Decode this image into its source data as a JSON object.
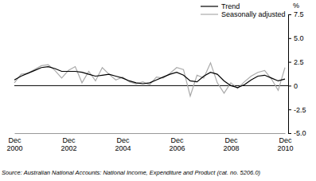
{
  "chart_data": {
    "type": "line",
    "ylabel": "%",
    "source": "Source: Australian National Accounts: National Income, Expenditure and Product (cat. no. 5206.0)",
    "categories": [
      "Dec 2000",
      null,
      null,
      null,
      null,
      null,
      null,
      null,
      "Dec 2002",
      null,
      null,
      null,
      null,
      null,
      null,
      null,
      "Dec 2004",
      null,
      null,
      null,
      null,
      null,
      null,
      null,
      "Dec 2006",
      null,
      null,
      null,
      null,
      null,
      null,
      null,
      "Dec 2008",
      null,
      null,
      null,
      null,
      null,
      null,
      null,
      "Dec 2010"
    ],
    "series": [
      {
        "name": "Trend",
        "color": "#000000",
        "values": [
          0.6,
          1.0,
          1.3,
          1.6,
          1.9,
          2.0,
          1.8,
          1.5,
          1.5,
          1.5,
          1.4,
          1.2,
          1.0,
          1.1,
          1.2,
          1.0,
          0.8,
          0.5,
          0.3,
          0.2,
          0.3,
          0.6,
          0.9,
          1.2,
          1.4,
          1.1,
          0.5,
          0.4,
          1.0,
          1.4,
          1.2,
          0.5,
          0.0,
          -0.2,
          0.1,
          0.6,
          1.0,
          1.1,
          0.8,
          0.5,
          0.7
        ]
      },
      {
        "name": "Seasonally adjusted",
        "color": "#aaaaaa",
        "values": [
          0.3,
          1.2,
          1.3,
          1.7,
          2.1,
          2.2,
          1.6,
          0.8,
          1.6,
          2.0,
          0.3,
          1.5,
          0.5,
          1.9,
          1.2,
          0.6,
          0.9,
          0.4,
          0.2,
          0.4,
          0.1,
          0.9,
          0.8,
          1.3,
          1.9,
          1.7,
          -1.1,
          1.1,
          0.8,
          2.4,
          0.3,
          -0.8,
          0.3,
          -0.3,
          0.4,
          1.0,
          1.4,
          1.6,
          0.7,
          -0.5,
          1.9
        ]
      }
    ],
    "ylim": [
      -5,
      7.5
    ],
    "yticks": [
      {
        "value": -5,
        "label": "-5.0"
      },
      {
        "value": -2.5,
        "label": "-2.5"
      },
      0,
      2.5,
      {
        "value": 5,
        "label": "5.0"
      },
      {
        "value": 7.5,
        "label": "7.5"
      }
    ],
    "grid": false,
    "legend": "top-right"
  }
}
